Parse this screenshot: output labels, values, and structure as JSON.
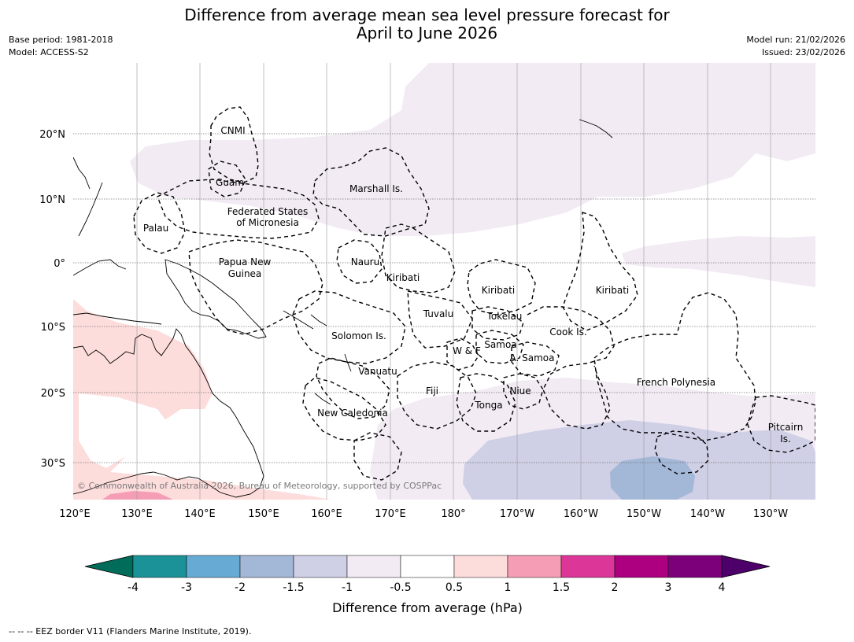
{
  "title": {
    "line1": "Difference from average mean sea level pressure forecast for",
    "line2": "April to June 2026"
  },
  "meta_left": {
    "base_period": "Base period: 1981-2018",
    "model": "Model: ACCESS-S2"
  },
  "meta_right": {
    "model_run": "Model run: 21/02/2026",
    "issued": "Issued: 23/02/2026"
  },
  "map": {
    "lat_labels": [
      "20°N",
      "10°N",
      "0°",
      "10°S",
      "20°S",
      "30°S"
    ],
    "lon_labels": [
      "120°E",
      "130°E",
      "140°E",
      "150°E",
      "160°E",
      "170°E",
      "180°",
      "170°W",
      "160°W",
      "150°W",
      "140°W",
      "130°W"
    ],
    "copyright": "© Commonwealth of Australia 2026, Bureau of Meteorology, supported by COSPPac",
    "region_labels": [
      "CNMI",
      "Guam",
      "Marshall Is.",
      "Federated States",
      "of Micronesia",
      "Palau",
      "Papua New",
      "Guinea",
      "Nauru",
      "Kiribati",
      "Kiribati",
      "Kiribati",
      "Tuvalu",
      "Tokelau",
      "Solomon Is.",
      "Cook Is.",
      "Samoa",
      "W & F",
      "A. Samoa",
      "Vanuatu",
      "Fiji",
      "Niue",
      "French Polynesia",
      "Tonga",
      "New Caledonia",
      "Pitcairn",
      "Is."
    ]
  },
  "colorbar": {
    "ticks": [
      "-4",
      "-3",
      "-2",
      "-1.5",
      "-1",
      "-0.5",
      "0.5",
      "1",
      "1.5",
      "2",
      "3",
      "4"
    ],
    "colors": [
      "#1a9297",
      "#67abd4",
      "#a3b7d7",
      "#cfcfe6",
      "#f2ebf4",
      "#ffffff",
      "#fddcdc",
      "#f69db6",
      "#dc3798",
      "#ad0080",
      "#7c0079"
    ],
    "low_extend_color": "#016c59",
    "high_extend_color": "#4d0069",
    "label": "Difference from average (hPa)"
  },
  "footer": "--  --  -- EEZ border V11 (Flanders Marine Institute, 2019)."
}
